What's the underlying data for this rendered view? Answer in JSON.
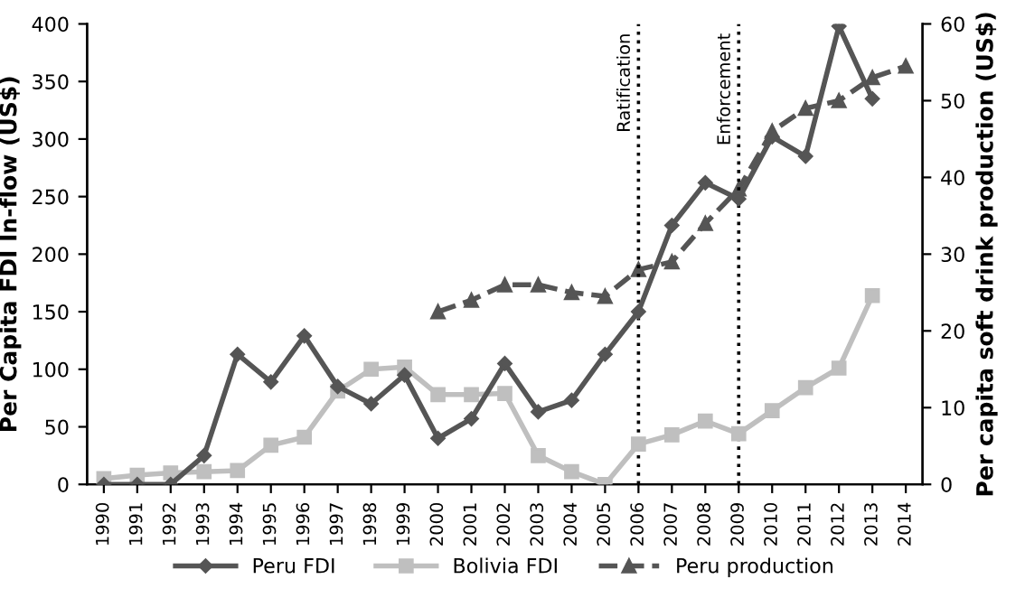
{
  "chart_data": {
    "type": "line",
    "categories": [
      "1990",
      "1991",
      "1992",
      "1993",
      "1994",
      "1995",
      "1996",
      "1997",
      "1998",
      "1999",
      "2000",
      "2001",
      "2002",
      "2003",
      "2004",
      "2005",
      "2006",
      "2007",
      "2008",
      "2009",
      "2010",
      "2011",
      "2012",
      "2013",
      "2014"
    ],
    "ylabel": "Per Capita FDI In-flow (US$)",
    "y2label": "Per capita soft drink production (US$)",
    "ylim": [
      0,
      400
    ],
    "yticks": [
      0,
      50,
      100,
      150,
      200,
      250,
      300,
      350,
      400
    ],
    "y2lim": [
      0,
      60
    ],
    "y2ticks": [
      0,
      10,
      20,
      30,
      40,
      50,
      60
    ],
    "grid": false,
    "legend": "bottom",
    "series": [
      {
        "name": "Peru FDI",
        "color": "#555555",
        "marker": "diamond",
        "line_style": "solid",
        "values": [
          0,
          0,
          0,
          25,
          113,
          89,
          129,
          85,
          70,
          95,
          40,
          57,
          105,
          63,
          73,
          113,
          150,
          225,
          262,
          248,
          302,
          285,
          398,
          335,
          null
        ]
      },
      {
        "name": "Bolivia FDI",
        "color": "#bfbfbf",
        "marker": "square",
        "line_style": "solid",
        "values": [
          5,
          8,
          10,
          11,
          12,
          34,
          41,
          81,
          100,
          102,
          78,
          78,
          79,
          25,
          11,
          0,
          35,
          43,
          55,
          44,
          64,
          84,
          101,
          164,
          null
        ]
      },
      {
        "name": "Peru production",
        "color": "#555555",
        "marker": "triangle",
        "line_style": "dashed",
        "axis": "y2",
        "values": [
          null,
          null,
          null,
          null,
          null,
          null,
          null,
          null,
          null,
          null,
          22.5,
          24,
          26,
          26,
          25,
          24.5,
          28,
          29,
          34,
          38.5,
          46,
          49,
          50,
          53,
          54.5
        ]
      }
    ],
    "ref_lines": [
      {
        "axis": "x",
        "value": "2006",
        "label": "Ratification",
        "line_style": "dotted",
        "color": "#000000"
      },
      {
        "axis": "x",
        "value": "2009",
        "label": "Enforcement",
        "line_style": "dotted",
        "color": "#000000"
      }
    ]
  }
}
